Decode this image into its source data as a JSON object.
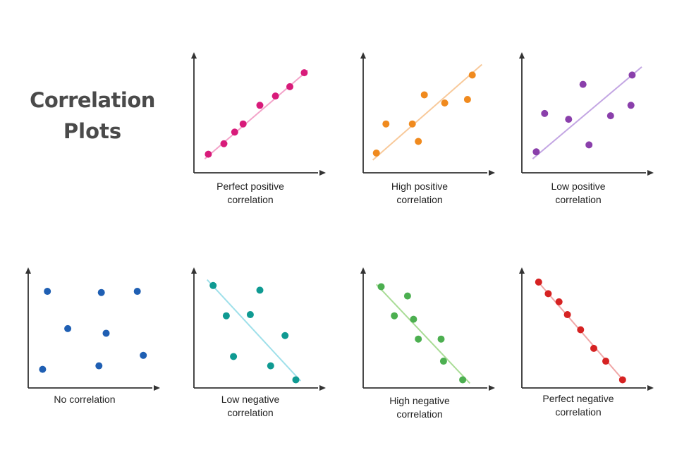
{
  "title": {
    "line1": "Correlation",
    "line2": "Plots"
  },
  "panels": [
    {
      "name": "perfect-positive",
      "caption_lines": [
        "Perfect positive",
        "correlation"
      ],
      "color": "#d81b7a",
      "line_color": "#f3a3c9",
      "points": [
        [
          0.12,
          0.16
        ],
        [
          0.25,
          0.25
        ],
        [
          0.34,
          0.35
        ],
        [
          0.41,
          0.42
        ],
        [
          0.55,
          0.58
        ],
        [
          0.68,
          0.66
        ],
        [
          0.8,
          0.74
        ],
        [
          0.92,
          0.86
        ]
      ],
      "fit": [
        [
          0.09,
          0.12
        ],
        [
          0.95,
          0.88
        ]
      ]
    },
    {
      "name": "high-positive",
      "caption_lines": [
        "High positive",
        "correlation"
      ],
      "color": "#f08a1e",
      "line_color": "#f8c99a",
      "points": [
        [
          0.11,
          0.17
        ],
        [
          0.19,
          0.42
        ],
        [
          0.41,
          0.42
        ],
        [
          0.46,
          0.27
        ],
        [
          0.51,
          0.67
        ],
        [
          0.68,
          0.6
        ],
        [
          0.87,
          0.63
        ],
        [
          0.91,
          0.84
        ]
      ],
      "fit": [
        [
          0.08,
          0.11
        ],
        [
          0.99,
          0.93
        ]
      ]
    },
    {
      "name": "low-positive",
      "caption_lines": [
        "Low positive",
        "correlation"
      ],
      "color": "#8a3fab",
      "line_color": "#c3a6e3",
      "points": [
        [
          0.12,
          0.18
        ],
        [
          0.19,
          0.51
        ],
        [
          0.39,
          0.46
        ],
        [
          0.51,
          0.76
        ],
        [
          0.56,
          0.24
        ],
        [
          0.74,
          0.49
        ],
        [
          0.91,
          0.58
        ],
        [
          0.92,
          0.84
        ]
      ],
      "fit": [
        [
          0.09,
          0.12
        ],
        [
          1.0,
          0.91
        ]
      ]
    },
    {
      "name": "no-correlation",
      "caption_lines": [
        "No correlation"
      ],
      "color": "#1f5fb3",
      "line_color": "",
      "points": [
        [
          0.16,
          0.83
        ],
        [
          0.61,
          0.82
        ],
        [
          0.91,
          0.83
        ],
        [
          0.33,
          0.51
        ],
        [
          0.65,
          0.47
        ],
        [
          0.12,
          0.16
        ],
        [
          0.59,
          0.19
        ],
        [
          0.96,
          0.28
        ]
      ],
      "fit": []
    },
    {
      "name": "low-negative",
      "caption_lines": [
        "Low negative",
        "correlation"
      ],
      "color": "#0f9a92",
      "line_color": "#9fe0ea",
      "points": [
        [
          0.16,
          0.88
        ],
        [
          0.55,
          0.84
        ],
        [
          0.27,
          0.62
        ],
        [
          0.47,
          0.63
        ],
        [
          0.76,
          0.45
        ],
        [
          0.33,
          0.27
        ],
        [
          0.64,
          0.19
        ],
        [
          0.85,
          0.07
        ]
      ],
      "fit": [
        [
          0.11,
          0.93
        ],
        [
          0.89,
          0.06
        ]
      ]
    },
    {
      "name": "high-negative",
      "caption_lines": [
        "High negative",
        "correlation"
      ],
      "color": "#4caf50",
      "line_color": "#a9dc96",
      "points": [
        [
          0.15,
          0.87
        ],
        [
          0.37,
          0.79
        ],
        [
          0.26,
          0.62
        ],
        [
          0.42,
          0.59
        ],
        [
          0.46,
          0.42
        ],
        [
          0.65,
          0.42
        ],
        [
          0.67,
          0.23
        ],
        [
          0.83,
          0.07
        ]
      ],
      "fit": [
        [
          0.11,
          0.89
        ],
        [
          0.89,
          0.04
        ]
      ]
    },
    {
      "name": "perfect-negative",
      "caption_lines": [
        "Perfect negative",
        "correlation"
      ],
      "color": "#d62222",
      "line_color": "#f0a6a6",
      "points": [
        [
          0.14,
          0.91
        ],
        [
          0.22,
          0.81
        ],
        [
          0.31,
          0.74
        ],
        [
          0.38,
          0.63
        ],
        [
          0.49,
          0.5
        ],
        [
          0.6,
          0.34
        ],
        [
          0.7,
          0.23
        ],
        [
          0.84,
          0.07
        ]
      ],
      "fit": [
        [
          0.12,
          0.93
        ],
        [
          0.86,
          0.05
        ]
      ]
    }
  ]
}
